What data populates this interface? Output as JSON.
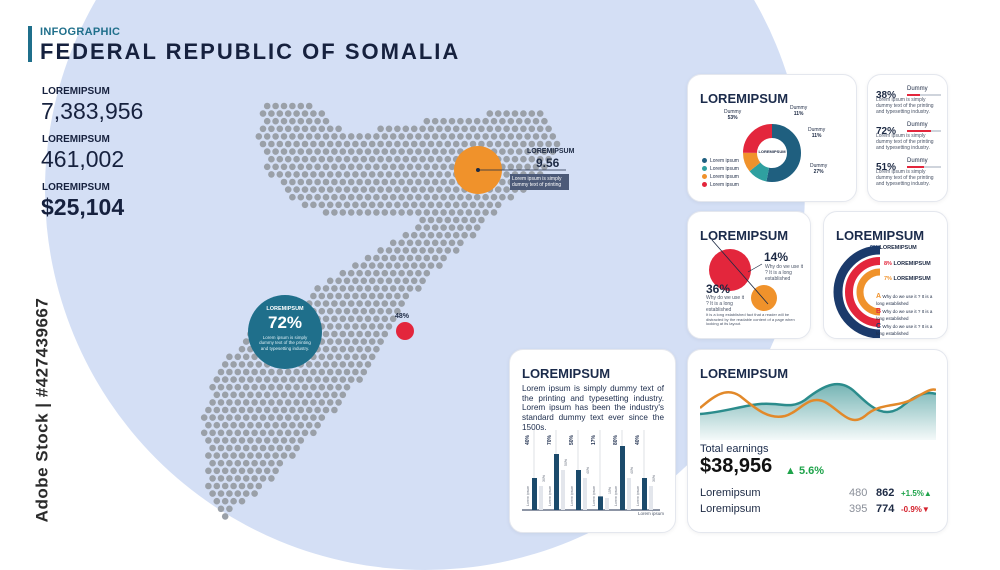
{
  "header": {
    "kicker": "INFOGRAPHIC",
    "title": "FEDERAL REPUBLIC OF SOMALIA"
  },
  "stats": [
    {
      "label": "LOREMIPSUM",
      "value": "7,383,956"
    },
    {
      "label": "LOREMIPSUM",
      "value": "461,002"
    },
    {
      "label": "LOREMIPSUM",
      "value": "$25,104"
    }
  ],
  "side_watermark": "Adobe Stock | #427439667",
  "map": {
    "callout_label": "LOREMIPSUM",
    "callout_value": "9.56",
    "callout_note": "Lorem ipsum is simply dummy text of printing",
    "bubble_big_label": "LOREMIPSUM",
    "bubble_big_pct": "72%",
    "bubble_big_text": "Lorem ipsum is simply dummy text of the printing and typesetting industry.",
    "bubble_small_pct": "48%",
    "colors": {
      "orange": "#f0922b",
      "blue": "#1f6f8b",
      "red": "#e3263c",
      "dots": "#9aa0a8"
    }
  },
  "donut_card": {
    "title": "LOREMIPSUM",
    "inner": "LOREMIPSUM",
    "labels": [
      {
        "name": "Dummy",
        "pct": "53%"
      },
      {
        "name": "Dummy",
        "pct": "11%"
      },
      {
        "name": "Dummy",
        "pct": "11%"
      },
      {
        "name": "Dummy",
        "pct": "27%"
      }
    ],
    "legend": [
      "Lorem ipsum",
      "Lorem ipsum",
      "Lorem ipsum",
      "Lorem ipsum"
    ],
    "legend_colors": [
      "#1f5f7f",
      "#2fa0a0",
      "#f0922b",
      "#e3263c"
    ]
  },
  "bars_card": {
    "items": [
      {
        "pct": "38%",
        "label": "Dummy",
        "text": "Lorem ipsum is simply dummy text of the printing and typesetting industry.",
        "fill": 0.38
      },
      {
        "pct": "72%",
        "label": "Dummy",
        "text": "Lorem ipsum is simply dummy text of the printing and typesetting industry.",
        "fill": 0.72
      },
      {
        "pct": "51%",
        "label": "Dummy",
        "text": "Lorem ipsum is simply dummy text of the printing and typesetting industry.",
        "fill": 0.51
      }
    ]
  },
  "venn_card": {
    "title": "LOREMIPSUM",
    "pct_a": "14%",
    "pct_b": "36%",
    "note_a": "Why do we use it ? It is a long established",
    "note_b": "Why do we use it ? It is a long established",
    "caption": "It is a long established fact that a reader will be distracted by the readable content of a page when looking at its layout."
  },
  "arc_card": {
    "title": "LOREMIPSUM",
    "rows": [
      {
        "pct": "9%",
        "label": "LOREMIPSUM"
      },
      {
        "pct": "8%",
        "label": "LOREMIPSUM"
      },
      {
        "pct": "7%",
        "label": "LOREMIPSUM"
      }
    ],
    "legend": [
      {
        "key": "A",
        "text": "Why do we use it ? It is a long established"
      },
      {
        "key": "B",
        "text": "Why do we use it ? It is a long established"
      },
      {
        "key": "C",
        "text": "Why do we use it ? It is a long established"
      }
    ]
  },
  "text_card": {
    "title": "LOREMIPSUM",
    "body": "Lorem ipsum is simply dummy text of the printing and typesetting industry. Lorem ipsum has been the industry's standard dummy text ever since the 1500s.",
    "footer": "Lorem ipsum",
    "bar_labels": [
      "Lorem ipsum",
      "Lorem ipsum",
      "Lorem ipsum",
      "Lorem ipsum",
      "Lorem ipsum",
      "Lorem ipsum"
    ]
  },
  "chart_data": {
    "type": "bar",
    "categories": [
      "",
      "",
      "",
      "",
      "",
      ""
    ],
    "series": [
      {
        "values": [
          40,
          70,
          50,
          17,
          80,
          40
        ]
      },
      {
        "values": [
          30,
          50,
          40,
          15,
          40,
          30
        ]
      }
    ],
    "value_labels": [
      "40%",
      "70%",
      "50%",
      "17%",
      "80%",
      "40%"
    ],
    "secondary_labels": [
      "30%",
      "50%",
      "40%",
      "15%",
      "40%",
      "30%"
    ],
    "ylim": [
      0,
      100
    ]
  },
  "earnings_card": {
    "title": "LOREMIPSUM",
    "total_label": "Total earnings",
    "total_value": "$38,956",
    "total_change": "5.6%",
    "rows": [
      {
        "label": "Loremipsum",
        "a": "480",
        "b": "862",
        "change": "+1.5%",
        "dir": "up"
      },
      {
        "label": "Loremipsum",
        "a": "395",
        "b": "774",
        "change": "-0.9%",
        "dir": "down"
      }
    ],
    "colors": {
      "up": "#1ea34a",
      "down": "#d4212c",
      "teal": "#2b8c8c",
      "orange": "#e2892a"
    }
  }
}
